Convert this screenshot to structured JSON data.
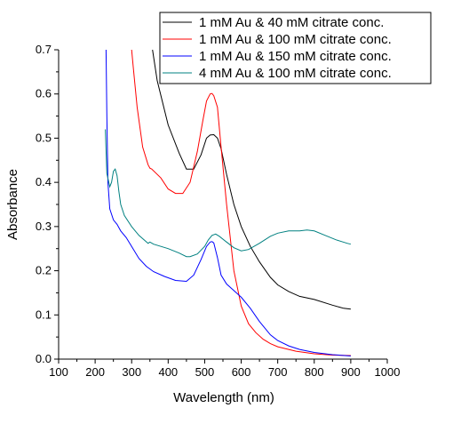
{
  "chart_data": {
    "type": "line",
    "title": "",
    "xlabel": "Wavelength (nm)",
    "ylabel": "Absorbance",
    "xlim": [
      100,
      1000
    ],
    "ylim": [
      0.0,
      0.7
    ],
    "x_ticks": [
      100,
      200,
      300,
      400,
      500,
      600,
      700,
      800,
      900,
      1000
    ],
    "x_tick_labels": [
      "100",
      "200",
      "300",
      "400",
      "500",
      "600",
      "700",
      "800",
      "900",
      "1000"
    ],
    "y_ticks": [
      0.0,
      0.1,
      0.2,
      0.3,
      0.4,
      0.5,
      0.6,
      0.7
    ],
    "y_tick_labels": [
      "0.0",
      "0.1",
      "0.2",
      "0.3",
      "0.4",
      "0.5",
      "0.6",
      "0.7"
    ],
    "grid": false,
    "legend_position": "top-right",
    "series": [
      {
        "name": "1 mM Au & 40 mM citrate conc.",
        "color": "#000000",
        "x": [
          357,
          370,
          400,
          430,
          450,
          470,
          490,
          505,
          515,
          525,
          535,
          545,
          560,
          580,
          600,
          625,
          650,
          680,
          700,
          730,
          760,
          800,
          850,
          880,
          900
        ],
        "y": [
          0.7,
          0.63,
          0.53,
          0.466,
          0.43,
          0.43,
          0.462,
          0.5,
          0.507,
          0.508,
          0.5,
          0.476,
          0.418,
          0.35,
          0.3,
          0.255,
          0.22,
          0.185,
          0.168,
          0.153,
          0.142,
          0.135,
          0.122,
          0.115,
          0.113
        ]
      },
      {
        "name": "1 mM Au & 100 mM citrate conc.",
        "color": "#ff0000",
        "x": [
          300,
          305,
          315,
          330,
          345,
          350,
          355,
          380,
          400,
          420,
          440,
          460,
          480,
          495,
          505,
          515,
          520,
          525,
          535,
          545,
          560,
          580,
          600,
          620,
          640,
          660,
          680,
          700,
          750,
          800,
          850,
          900
        ],
        "y": [
          0.7,
          0.655,
          0.57,
          0.48,
          0.44,
          0.432,
          0.43,
          0.41,
          0.385,
          0.375,
          0.375,
          0.4,
          0.47,
          0.54,
          0.584,
          0.6,
          0.601,
          0.596,
          0.57,
          0.48,
          0.35,
          0.2,
          0.12,
          0.08,
          0.06,
          0.045,
          0.035,
          0.028,
          0.018,
          0.012,
          0.009,
          0.008
        ]
      },
      {
        "name": "1 mM Au & 150 mM citrate conc.",
        "color": "#0000ff",
        "x": [
          230,
          232,
          235,
          240,
          250,
          260,
          270,
          285,
          300,
          320,
          340,
          360,
          390,
          420,
          450,
          470,
          490,
          505,
          515,
          520,
          525,
          535,
          545,
          560,
          580,
          600,
          625,
          650,
          680,
          700,
          730,
          760,
          800,
          850,
          900
        ],
        "y": [
          0.7,
          0.55,
          0.4,
          0.34,
          0.315,
          0.305,
          0.29,
          0.275,
          0.255,
          0.228,
          0.21,
          0.198,
          0.187,
          0.178,
          0.176,
          0.19,
          0.225,
          0.255,
          0.265,
          0.266,
          0.263,
          0.23,
          0.19,
          0.17,
          0.155,
          0.14,
          0.115,
          0.085,
          0.055,
          0.042,
          0.03,
          0.022,
          0.015,
          0.01,
          0.007
        ]
      },
      {
        "name": "4 mM Au & 100 mM citrate conc.",
        "color": "#008080",
        "x": [
          228,
          232,
          240,
          245,
          250,
          255,
          260,
          265,
          270,
          280,
          300,
          320,
          345,
          350,
          360,
          400,
          430,
          450,
          460,
          480,
          500,
          510,
          520,
          530,
          540,
          560,
          580,
          600,
          620,
          650,
          680,
          700,
          730,
          760,
          780,
          800,
          830,
          860,
          890,
          900
        ],
        "y": [
          0.52,
          0.42,
          0.39,
          0.4,
          0.425,
          0.43,
          0.415,
          0.38,
          0.35,
          0.325,
          0.3,
          0.28,
          0.262,
          0.265,
          0.26,
          0.25,
          0.24,
          0.232,
          0.232,
          0.238,
          0.255,
          0.27,
          0.28,
          0.283,
          0.278,
          0.265,
          0.252,
          0.245,
          0.248,
          0.262,
          0.278,
          0.285,
          0.29,
          0.29,
          0.292,
          0.29,
          0.28,
          0.27,
          0.262,
          0.26
        ]
      }
    ]
  }
}
